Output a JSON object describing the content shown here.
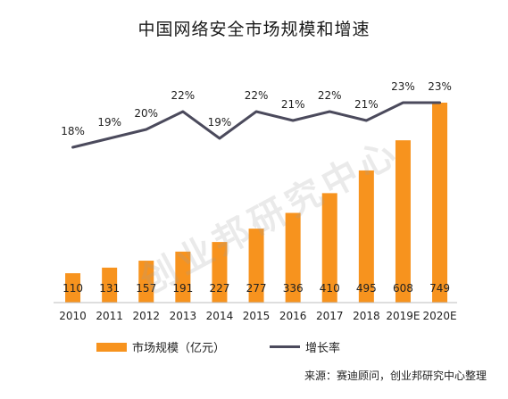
{
  "title": "中国网络安全市场规模和增速",
  "source": "来源：赛迪顾问，创业邦研究中心整理",
  "watermark": "创业邦研究中心",
  "colors": {
    "bar": "#f7931e",
    "line": "#4b4a5c"
  },
  "chart_data": {
    "type": "bar",
    "title": "中国网络安全市场规模和增速",
    "categories": [
      "2010",
      "2011",
      "2012",
      "2013",
      "2014",
      "2015",
      "2016",
      "2017",
      "2018",
      "2019E",
      "2020E"
    ],
    "series": [
      {
        "name": "市场规模（亿元）",
        "type": "bar",
        "values": [
          110,
          131,
          157,
          191,
          227,
          277,
          336,
          410,
          495,
          608,
          749
        ]
      },
      {
        "name": "增长率",
        "type": "line",
        "values": [
          18,
          19,
          20,
          22,
          19,
          22,
          21,
          22,
          21,
          23,
          23
        ],
        "labels": [
          "18%",
          "19%",
          "20%",
          "22%",
          "19%",
          "22%",
          "21%",
          "22%",
          "21%",
          "23%",
          "23%"
        ]
      }
    ],
    "legend": "bottom",
    "grid": false
  }
}
